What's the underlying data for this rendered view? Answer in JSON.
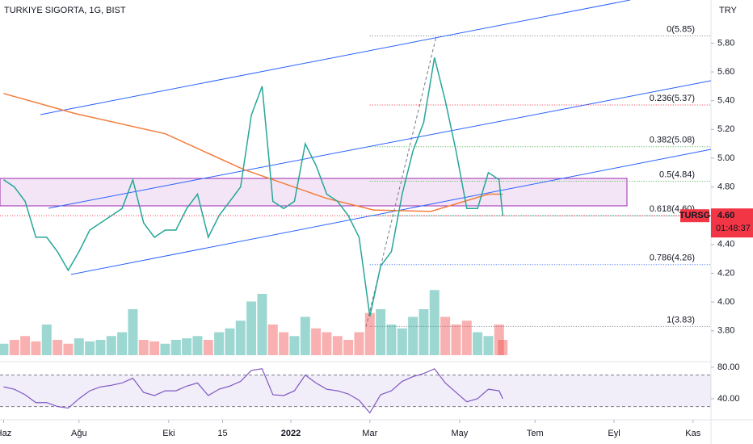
{
  "chart_data": {
    "type": "line",
    "title": "TURKIYE SIGORTA, 1G, BIST",
    "currency": "TRY",
    "symbol": "TURSG",
    "last_price": {
      "value": 4.6,
      "label": "4.60"
    },
    "countdown": "01:48:37",
    "xlim": [
      -1,
      197
    ],
    "xticks": [
      {
        "value": 0,
        "label": "Haz"
      },
      {
        "value": 21,
        "label": "Ağu"
      },
      {
        "value": 46,
        "label": "Eki"
      },
      {
        "value": 61,
        "label": "15"
      },
      {
        "value": 80,
        "label": "2022"
      },
      {
        "value": 102,
        "label": "Mar"
      },
      {
        "value": 127,
        "label": "May"
      },
      {
        "value": 148,
        "label": "Tem"
      },
      {
        "value": 170,
        "label": "Eyl"
      },
      {
        "value": 192,
        "label": "Kas"
      }
    ],
    "ylim": [
      3.63,
      6.1
    ],
    "yticks": [
      {
        "value": 5.8,
        "label": "5.80"
      },
      {
        "value": 5.6,
        "label": "5.60"
      },
      {
        "value": 5.4,
        "label": "5.40"
      },
      {
        "value": 5.2,
        "label": "5.20"
      },
      {
        "value": 5.0,
        "label": "5.00"
      },
      {
        "value": 4.8,
        "label": "4.80"
      },
      {
        "value": 4.4,
        "label": "4.40"
      },
      {
        "value": 4.2,
        "label": "4.20"
      },
      {
        "value": 4.0,
        "label": "4.00"
      },
      {
        "value": 3.8,
        "label": "3.80"
      }
    ],
    "x": [
      0,
      3,
      6,
      9,
      12,
      15,
      18,
      21,
      24,
      27,
      30,
      33,
      36,
      39,
      42,
      45,
      48,
      51,
      54,
      57,
      60,
      63,
      66,
      69,
      72,
      75,
      78,
      81,
      84,
      87,
      90,
      93,
      96,
      99,
      102,
      105,
      108,
      111,
      114,
      117,
      120,
      123,
      126,
      129,
      132,
      135,
      138,
      139
    ],
    "series": [
      {
        "name": "TURSG",
        "color": "#26a69a",
        "values": [
          4.85,
          4.8,
          4.7,
          4.45,
          4.45,
          4.35,
          4.22,
          4.35,
          4.5,
          4.55,
          4.6,
          4.65,
          4.85,
          4.55,
          4.45,
          4.5,
          4.5,
          4.65,
          4.75,
          4.45,
          4.6,
          4.7,
          4.8,
          5.3,
          5.5,
          4.7,
          4.65,
          4.7,
          5.1,
          4.95,
          4.75,
          4.7,
          4.6,
          4.45,
          3.9,
          4.25,
          4.35,
          4.75,
          5.05,
          5.25,
          5.7,
          5.4,
          5.05,
          4.65,
          4.65,
          4.9,
          4.85,
          4.6
        ]
      }
    ],
    "moving_average": {
      "color": "#f57c3a",
      "x": [
        0,
        20,
        45,
        67,
        90,
        103,
        119,
        135,
        139
      ],
      "values": [
        5.45,
        5.31,
        5.17,
        4.92,
        4.72,
        4.64,
        4.63,
        4.75,
        4.75
      ]
    },
    "fib_levels": [
      {
        "value": 5.85,
        "label": "0(5.85)",
        "color": "#787b86"
      },
      {
        "value": 5.37,
        "label": "0.236(5.37)",
        "color": "#f23645"
      },
      {
        "value": 5.08,
        "label": "0.382(5.08)",
        "color": "#4caf50"
      },
      {
        "value": 4.84,
        "label": "0.5(4.84)",
        "color": "#4caf50"
      },
      {
        "value": 4.6,
        "label": "0.618(4.60)",
        "color": "#089981"
      },
      {
        "value": 4.26,
        "label": "0.786(4.26)",
        "color": "#2962ff"
      },
      {
        "value": 3.83,
        "label": "1(3.83)",
        "color": "#787b86"
      }
    ],
    "volume": {
      "colors": [
        "#26a69a",
        "#ef5350"
      ],
      "vlim": [
        0,
        100
      ],
      "values": [
        15,
        20,
        25,
        18,
        40,
        20,
        15,
        22,
        18,
        20,
        25,
        30,
        60,
        20,
        18,
        15,
        20,
        22,
        25,
        20,
        30,
        35,
        45,
        70,
        80,
        40,
        30,
        25,
        50,
        35,
        30,
        25,
        20,
        30,
        55,
        60,
        40,
        35,
        50,
        60,
        85,
        50,
        40,
        45,
        30,
        25,
        40,
        20
      ]
    },
    "rsi": {
      "color": "#7e57c2",
      "ylim": [
        18.3,
        85
      ],
      "band": [
        30,
        70
      ],
      "yticks": [
        {
          "value": 80,
          "label": "80.00"
        },
        {
          "value": 40,
          "label": "40.00"
        }
      ],
      "values": [
        55,
        52,
        45,
        35,
        35,
        30,
        28,
        40,
        50,
        55,
        57,
        60,
        66,
        48,
        44,
        50,
        50,
        56,
        60,
        44,
        52,
        56,
        62,
        76,
        78,
        45,
        44,
        50,
        70,
        60,
        52,
        50,
        46,
        38,
        22,
        45,
        50,
        62,
        68,
        72,
        78,
        60,
        48,
        36,
        40,
        52,
        50,
        40
      ]
    }
  }
}
